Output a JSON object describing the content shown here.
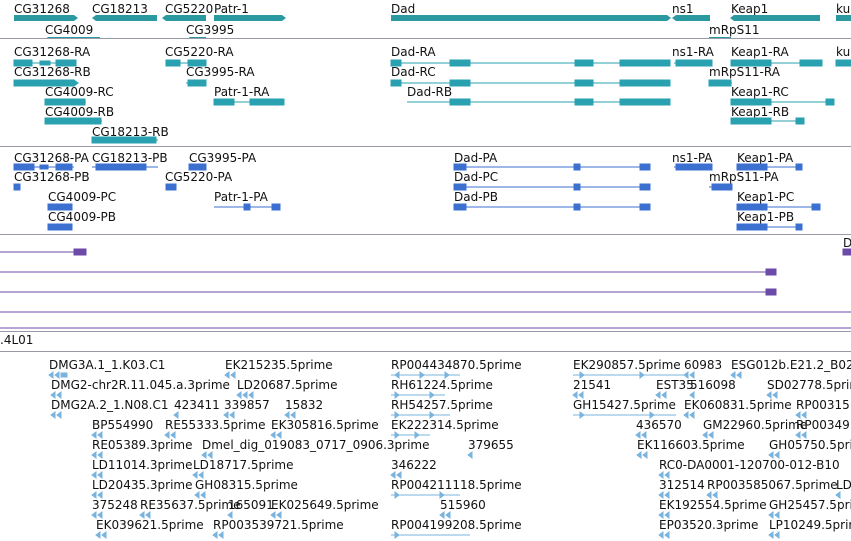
{
  "colors": {
    "gene": "#2b9aa0",
    "transcript_a": "#2aa1b1",
    "transcript_b": "#3b6fd0",
    "alignment": "#6b4aa8",
    "est": "#7ab4de"
  },
  "genes": [
    {
      "name": "CG31268",
      "y": 8
    },
    {
      "name": "CG18213",
      "y": 8
    },
    {
      "name": "CG5220",
      "y": 8
    },
    {
      "name": "Patr-1",
      "y": 8
    },
    {
      "name": "Dad",
      "y": 8
    },
    {
      "name": "ns1",
      "y": 8
    },
    {
      "name": "Keap1",
      "y": 8
    },
    {
      "name": "ku",
      "y": 8
    },
    {
      "name": "CG4009",
      "y": 30
    },
    {
      "name": "CG3995",
      "y": 30
    },
    {
      "name": "mRpS11",
      "y": 30
    }
  ],
  "transcripts_a": [
    {
      "name": "CG31268-RA"
    },
    {
      "name": "CG5220-RA"
    },
    {
      "name": "Dad-RA"
    },
    {
      "name": "ns1-RA"
    },
    {
      "name": "Keap1-RA"
    },
    {
      "name": "ku"
    },
    {
      "name": "CG31268-RB"
    },
    {
      "name": "CG3995-RA"
    },
    {
      "name": "Dad-RC"
    },
    {
      "name": "mRpS11-RA"
    },
    {
      "name": "CG4009-RC"
    },
    {
      "name": "Patr-1-RA"
    },
    {
      "name": "Dad-RB"
    },
    {
      "name": "Keap1-RC"
    },
    {
      "name": "CG4009-RB"
    },
    {
      "name": "Keap1-RB"
    },
    {
      "name": "CG18213-RB"
    }
  ],
  "transcripts_b": [
    {
      "name": "CG31268-PA"
    },
    {
      "name": "CG18213-PB"
    },
    {
      "name": "CG3995-PA"
    },
    {
      "name": "Dad-PA"
    },
    {
      "name": "ns1-PA"
    },
    {
      "name": "Keap1-PA"
    },
    {
      "name": "CG31268-PB"
    },
    {
      "name": "CG5220-PA"
    },
    {
      "name": "Dad-PC"
    },
    {
      "name": "mRpS11-PA"
    },
    {
      "name": "CG4009-PC"
    },
    {
      "name": "Patr-1-PA"
    },
    {
      "name": "Dad-PB"
    },
    {
      "name": "Keap1-PC"
    },
    {
      "name": "CG4009-PB"
    },
    {
      "name": "Keap1-PB"
    }
  ],
  "alignment_label": "D",
  "section_label": ".4L01",
  "ests": [
    "DMG3A.1_1.K03.C1",
    "EK215235.5prime",
    "RP004434870.5prime",
    "EK290857.5prime",
    "60983",
    "ESG012b.E21.2_B02",
    "DMG2-chr2R.11.045.a.3prime",
    "LD20687.5prime",
    "RH61224.5prime",
    "21541",
    "EST35",
    "516098",
    "SD02778.5prime",
    "DMG2A.2_1.N08.C1",
    "423411",
    "339857",
    "15832",
    "RH54257.5prime",
    "GH15427.5prime",
    "EK060831.5prime",
    "RP00315",
    "BP554990",
    "RE55333.5prime",
    "EK305816.5prime",
    "EK222314.5prime",
    "436570",
    "GM22960.5prime",
    "RP00349",
    "RE05389.3prime",
    "Dmel_dig_019083_0717_0906.3prime",
    "379655",
    "EK116603.5prime",
    "GH05750.5prime",
    "LD11014.3prime",
    "LD18717.5prime",
    "346222",
    "RC0-DA0001-120700-012-B10",
    "LD20435.3prime",
    "GH08315.5prime",
    "RP004211118.5prime",
    "312514",
    "RP003585067.5prime",
    "LD",
    "375248",
    "RE35637.5prime",
    "165091",
    "EK025649.5prime",
    "515960",
    "EK192554.5prime",
    "GH25457.5prime",
    "EK039621.5prime",
    "RP003539721.5prime",
    "RP004199208.5prime",
    "EP03520.3prime",
    "LP10249.5prime"
  ]
}
